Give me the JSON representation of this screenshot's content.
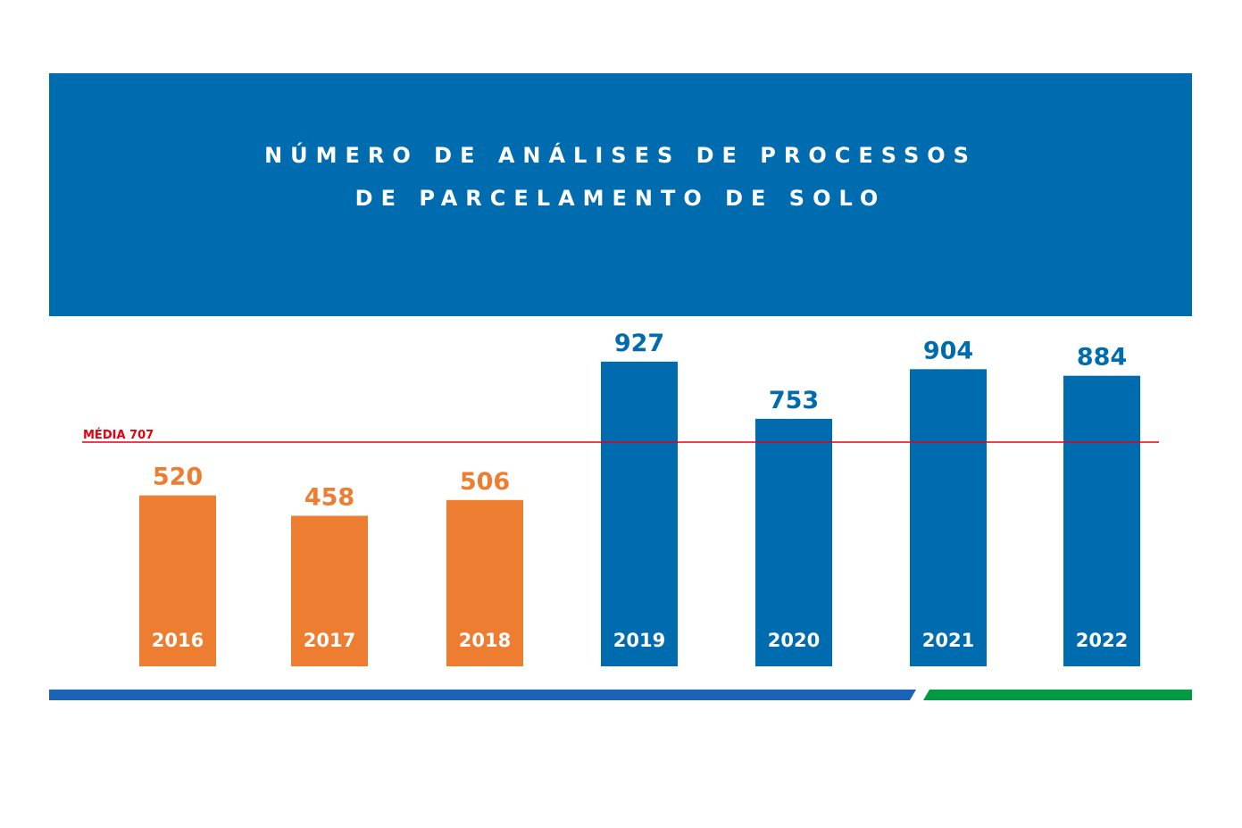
{
  "title_lines": [
    "NÚMERO DE ANÁLISES DE PROCESSOS",
    "DE PARCELAMENTO DE SOLO"
  ],
  "chart_data": {
    "type": "bar",
    "categories": [
      "2016",
      "2017",
      "2018",
      "2019",
      "2020",
      "2021",
      "2022"
    ],
    "values": [
      520,
      458,
      506,
      927,
      753,
      904,
      884
    ],
    "value_labels": [
      "520",
      "458",
      "506",
      "927",
      "753",
      "904",
      "884"
    ],
    "bar_colors": [
      "#ed7d31",
      "#ed7d31",
      "#ed7d31",
      "#006cb0",
      "#006cb0",
      "#006cb0",
      "#006cb0"
    ],
    "average": {
      "label": "MÉDIA 707",
      "value": 707,
      "color": "#e3000f"
    },
    "ylim": [
      0,
      960
    ],
    "grid": false,
    "legend": "none"
  },
  "colors": {
    "header": "#006cb0",
    "footer_blue": "#1b63b5",
    "footer_green": "#009a44"
  }
}
